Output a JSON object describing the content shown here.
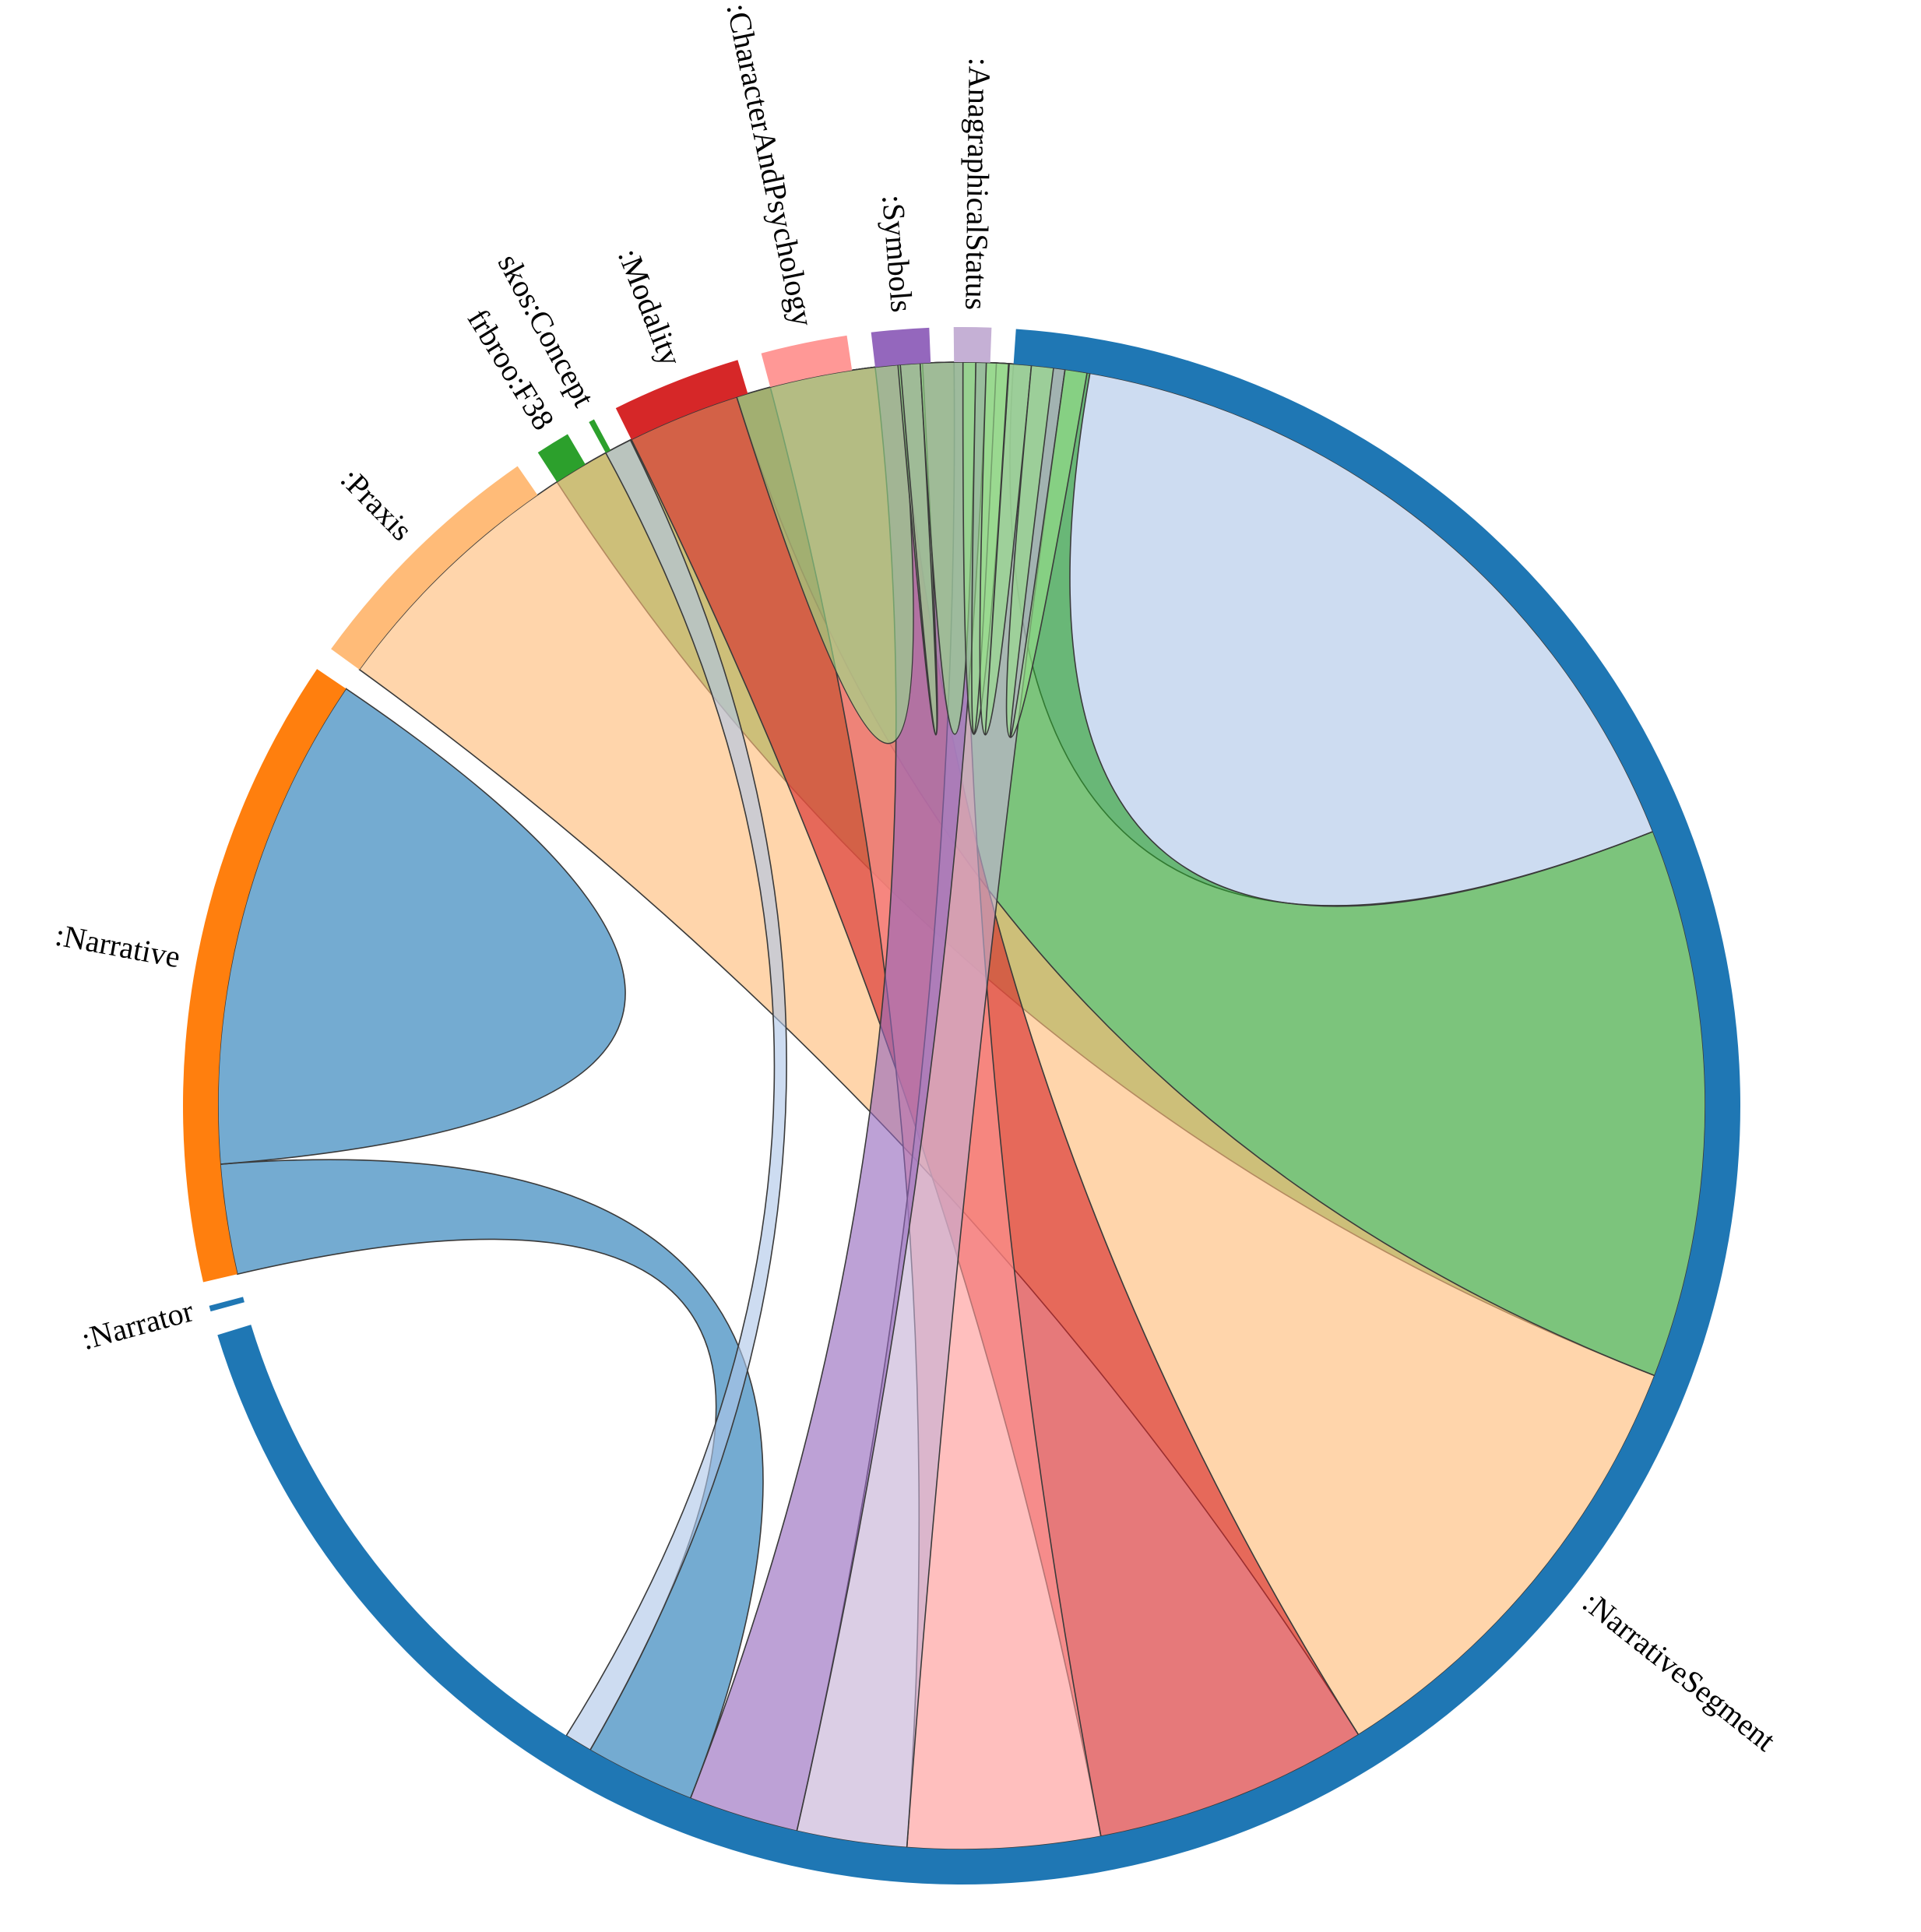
{
  "chart_data": {
    "type": "chord",
    "title": "",
    "groups": [
      {
        "name": ":NarrativeSegment",
        "color": "#1f77b4",
        "ribbon_color": "#aec7e8",
        "size": 1160
      },
      {
        "name": ":Narrator",
        "color": "#1f77b4",
        "ribbon_color": "#aec7e8",
        "size": 2
      },
      {
        "name": ":Narrative",
        "color": "#ff7f0e",
        "ribbon_color": "#1f77b4",
        "size": 220
      },
      {
        "name": ":Praxis",
        "color": "#ffbb78",
        "ribbon_color": "#98df8a",
        "size": 90
      },
      {
        "name": "frbroo:F38",
        "color": "#2ca02c",
        "ribbon_color": "#2ca02c",
        "size": 12
      },
      {
        "name": "skos:Concept",
        "color": "#2ca02c",
        "ribbon_color": "#aec7e8",
        "size": 2
      },
      {
        "name": ":Modality",
        "color": "#d62728",
        "ribbon_color": "#98df8a",
        "size": 45
      },
      {
        "name": ":CharacterAndPsychology",
        "color": "#ff9896",
        "ribbon_color": "#98df8a",
        "size": 30
      },
      {
        "name": ":Symbols",
        "color": "#9467bd",
        "ribbon_color": "#98df8a",
        "size": 20
      },
      {
        "name": ":AnagraphicalStatus",
        "color": "#c5b0d5",
        "ribbon_color": "#98df8a",
        "size": 13
      }
    ],
    "links": [
      {
        "source": ":NarrativeSegment",
        "target": ":NarrativeSegment",
        "value": 300,
        "color": "#aec7e8"
      },
      {
        "source": ":NarrativeSegment",
        "target": "frbroo:F38",
        "value": 200,
        "color": "#2ca02c"
      },
      {
        "source": ":NarrativeSegment",
        "target": ":Praxis",
        "value": 170,
        "color": "#ffbb78"
      },
      {
        "source": ":NarrativeSegment",
        "target": ":Modality",
        "value": 100,
        "color": "#d62728"
      },
      {
        "source": ":NarrativeSegment",
        "target": ":CharacterAndPsychology",
        "value": 70,
        "color": "#ff9896"
      },
      {
        "source": ":NarrativeSegment",
        "target": ":AnagraphicalStatus",
        "value": 40,
        "color": "#c5b0d5"
      },
      {
        "source": ":NarrativeSegment",
        "target": ":Symbols",
        "value": 40,
        "color": "#9467bd"
      },
      {
        "source": ":NarrativeSegment",
        "target": ":Narrative",
        "value": 40,
        "color": "#1f77b4"
      },
      {
        "source": ":NarrativeSegment",
        "target": "skos:Concept",
        "value": 10,
        "color": "#aec7e8"
      },
      {
        "source": ":Narrative",
        "target": ":Narrative",
        "value": 180,
        "color": "#1f77b4"
      },
      {
        "source": ":Praxis",
        "target": ":Praxis",
        "value": 60,
        "color": "#98df8a"
      },
      {
        "source": ":Modality",
        "target": ":Praxis",
        "value": 8,
        "color": "#98df8a"
      },
      {
        "source": ":Modality",
        "target": ":Modality",
        "value": 20,
        "color": "#98df8a"
      },
      {
        "source": ":CharacterAndPsychology",
        "target": ":Modality",
        "value": 12,
        "color": "#98df8a"
      },
      {
        "source": ":Symbols",
        "target": ":Modality",
        "value": 8,
        "color": "#98df8a"
      },
      {
        "source": ":AnagraphicalStatus",
        "target": ":Modality",
        "value": 8,
        "color": "#98df8a"
      }
    ]
  }
}
